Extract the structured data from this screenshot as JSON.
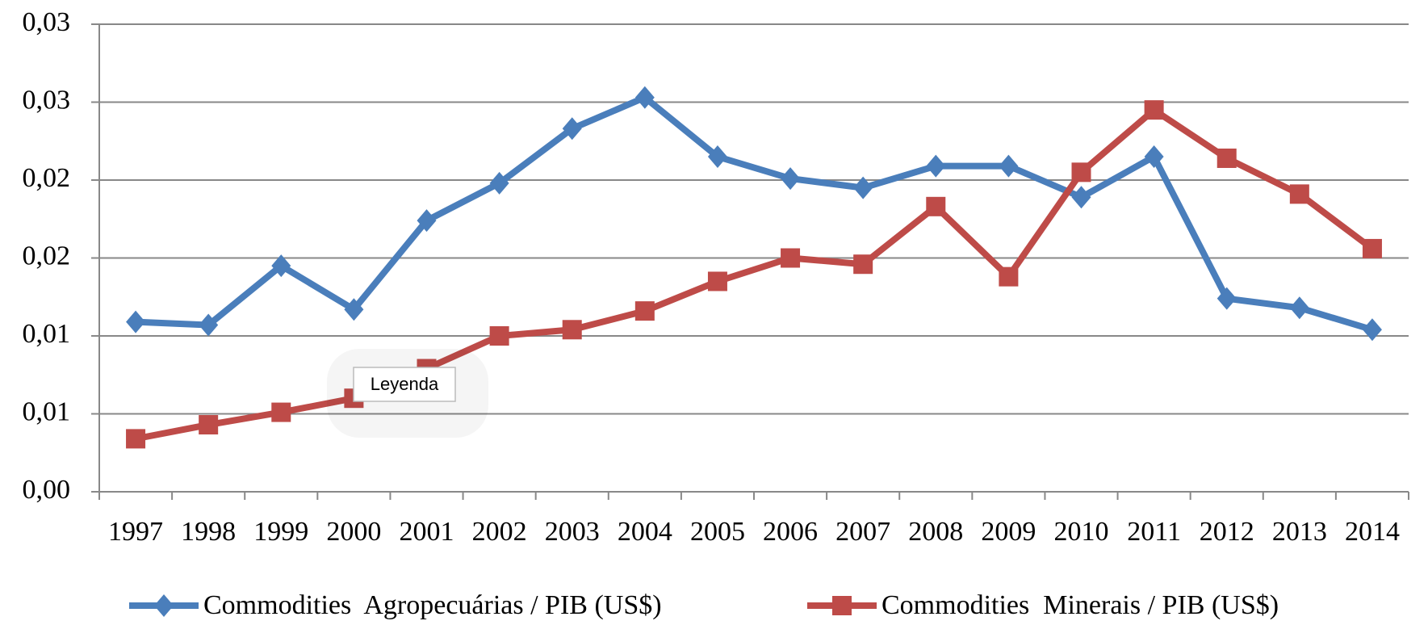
{
  "chart_data": {
    "type": "line",
    "categories": [
      "1997",
      "1998",
      "1999",
      "2000",
      "2001",
      "2002",
      "2003",
      "2004",
      "2005",
      "2006",
      "2007",
      "2008",
      "2009",
      "2010",
      "2011",
      "2012",
      "2013",
      "2014"
    ],
    "series": [
      {
        "name": "Commodities  Agropecuárias / PIB (US$)",
        "color": "#4a7ebb",
        "marker": "diamond",
        "values": [
          0.0109,
          0.0107,
          0.0145,
          0.0117,
          0.0174,
          0.0198,
          0.0233,
          0.0253,
          0.0215,
          0.0201,
          0.0195,
          0.0209,
          0.0209,
          0.0189,
          0.0215,
          0.0124,
          0.0118,
          0.0104
        ]
      },
      {
        "name": "Commodities  Minerais / PIB (US$)",
        "color": "#be4b48",
        "marker": "square",
        "values": [
          0.0034,
          0.0043,
          0.0051,
          0.006,
          0.0079,
          0.01,
          0.0104,
          0.0116,
          0.0135,
          0.015,
          0.0146,
          0.0183,
          0.0138,
          0.0205,
          0.0245,
          0.0214,
          0.0191,
          0.0156
        ]
      }
    ],
    "ylim": [
      0,
      0.03
    ],
    "yticks": [
      {
        "value": 0,
        "label": "0,00"
      },
      {
        "value": 0.005,
        "label": "0,01"
      },
      {
        "value": 0.01,
        "label": "0,01"
      },
      {
        "value": 0.015,
        "label": "0,02"
      },
      {
        "value": 0.02,
        "label": "0,02"
      },
      {
        "value": 0.025,
        "label": "0,03"
      },
      {
        "value": 0.03,
        "label": "0,03"
      }
    ],
    "grid": true,
    "legend": "bottom",
    "tooltip": "Leyenda"
  }
}
